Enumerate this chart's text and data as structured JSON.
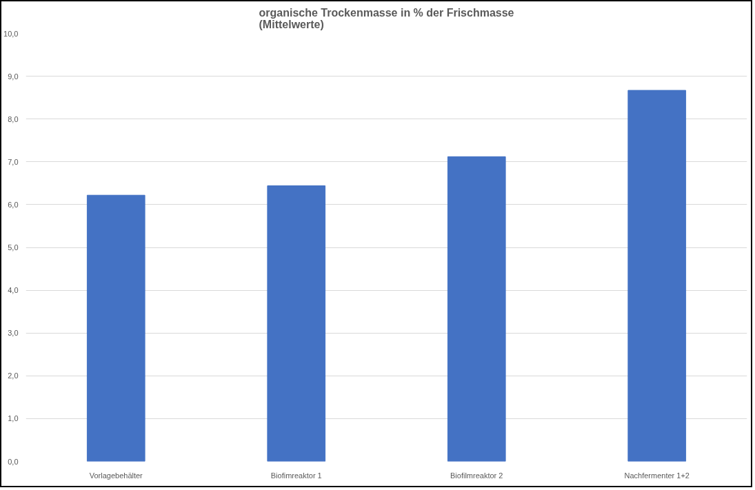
{
  "chart_data": {
    "type": "bar",
    "title": "organische Trockenmasse in % der Frischmasse\n(Mittelwerte)",
    "categories": [
      "Vorlagebehälter",
      "Biofimreaktor 1",
      "Biofilmreaktor 2",
      "Nachfermenter 1+2"
    ],
    "values": [
      6.22,
      6.44,
      7.12,
      8.67
    ],
    "color": "#4472c4",
    "ylim": [
      0,
      10
    ],
    "yticks": [
      {
        "value": 0,
        "label": "0,0"
      },
      {
        "value": 1,
        "label": "1,0"
      },
      {
        "value": 2,
        "label": "2,0"
      },
      {
        "value": 3,
        "label": "3,0"
      },
      {
        "value": 4,
        "label": "4,0"
      },
      {
        "value": 5,
        "label": "5,0"
      },
      {
        "value": 6,
        "label": "6,0"
      },
      {
        "value": 7,
        "label": "7,0"
      },
      {
        "value": 8,
        "label": "8,0"
      },
      {
        "value": 9,
        "label": "9,0"
      },
      {
        "value": 10,
        "label": "10,0"
      }
    ],
    "grid": "y"
  }
}
